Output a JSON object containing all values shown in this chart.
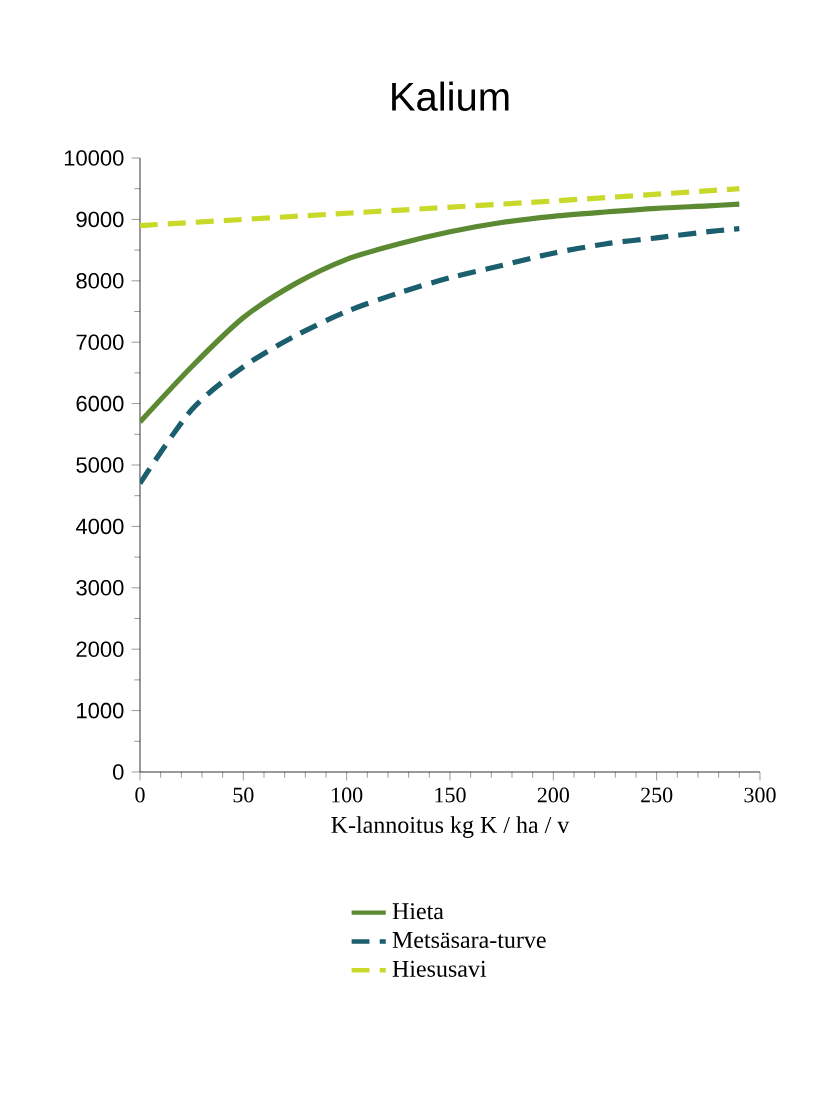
{
  "chart_data": {
    "type": "line",
    "title": "Kalium",
    "xlabel": "K-lannoitus  kg K / ha / v",
    "xlim": [
      0,
      300
    ],
    "xticks": [
      0,
      50,
      100,
      150,
      200,
      250,
      300
    ],
    "ylim": [
      0,
      10000
    ],
    "yticks": [
      0,
      1000,
      2000,
      3000,
      4000,
      5000,
      6000,
      7000,
      8000,
      9000,
      10000
    ],
    "grid": false,
    "legend": "bottom",
    "marker": "none",
    "series": [
      {
        "name": "Hieta",
        "color": "#5b8a32",
        "line_style": "solid",
        "x": [
          0,
          25,
          50,
          75,
          100,
          125,
          150,
          175,
          200,
          225,
          250,
          275,
          290
        ],
        "values": [
          5700,
          6600,
          7400,
          7950,
          8350,
          8600,
          8800,
          8950,
          9050,
          9120,
          9180,
          9220,
          9250
        ]
      },
      {
        "name": "Metsäsara-turve",
        "color": "#1b5e6e",
        "line_style": "dashed",
        "x": [
          0,
          25,
          50,
          75,
          100,
          125,
          150,
          175,
          200,
          225,
          250,
          275,
          290
        ],
        "values": [
          4700,
          5900,
          6600,
          7100,
          7500,
          7800,
          8050,
          8250,
          8450,
          8600,
          8700,
          8800,
          8850
        ]
      },
      {
        "name": "Hiesusavi",
        "color": "#c8d92a",
        "line_style": "dashed",
        "x": [
          0,
          100,
          200,
          290
        ],
        "values": [
          8900,
          9100,
          9300,
          9500
        ]
      }
    ]
  }
}
